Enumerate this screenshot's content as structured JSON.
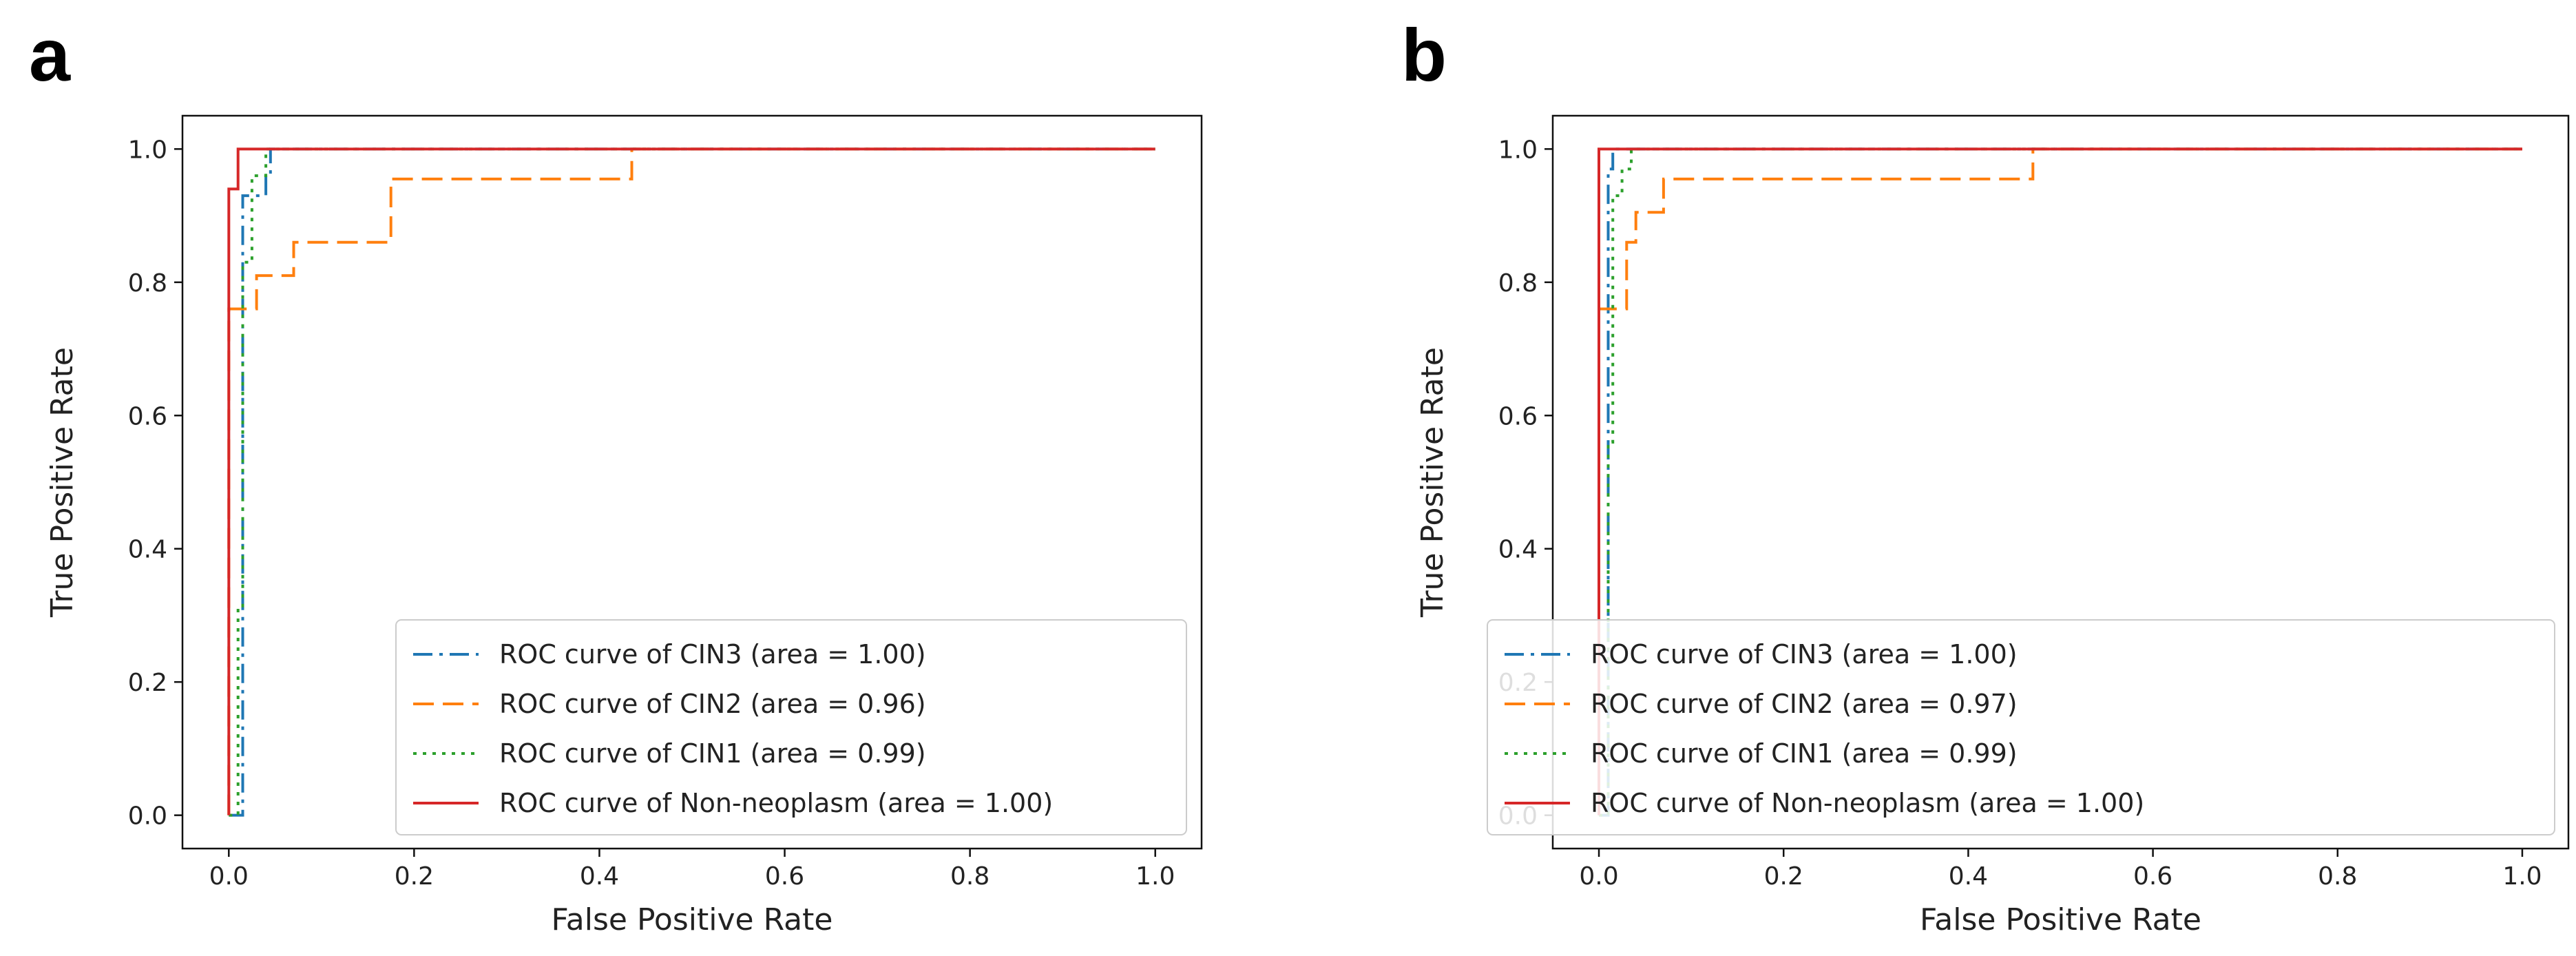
{
  "panels": [
    {
      "letter": "a"
    },
    {
      "letter": "b"
    }
  ],
  "chart_data": [
    {
      "type": "line",
      "panel": "a",
      "title": "",
      "xlabel": "False Positive Rate",
      "ylabel": "True Positive Rate",
      "xlim": [
        -0.05,
        1.05
      ],
      "ylim": [
        -0.05,
        1.05
      ],
      "xticks": [
        0.0,
        0.2,
        0.4,
        0.6,
        0.8,
        1.0
      ],
      "yticks": [
        0.0,
        0.2,
        0.4,
        0.6,
        0.8,
        1.0
      ],
      "tick_labels": [
        "0.0",
        "0.2",
        "0.4",
        "0.6",
        "0.8",
        "1.0"
      ],
      "grid": false,
      "legend_position": "bottom-right",
      "series": [
        {
          "name": "ROC curve of CIN3 (area = 1.00)",
          "color": "#1f77b4",
          "style": "dashdot",
          "x": [
            0.0,
            0.015,
            0.015,
            0.04,
            0.04,
            0.045,
            0.045,
            1.0
          ],
          "y": [
            0.0,
            0.0,
            0.93,
            0.93,
            0.96,
            0.96,
            1.0,
            1.0
          ]
        },
        {
          "name": "ROC curve of CIN2 (area = 0.96)",
          "color": "#ff7f0e",
          "style": "dashed",
          "x": [
            0.0,
            0.0,
            0.03,
            0.03,
            0.05,
            0.05,
            0.07,
            0.07,
            0.175,
            0.175,
            0.435,
            0.435,
            1.0
          ],
          "y": [
            0.0,
            0.76,
            0.76,
            0.81,
            0.81,
            0.81,
            0.81,
            0.86,
            0.86,
            0.955,
            0.955,
            1.0,
            1.0
          ]
        },
        {
          "name": "ROC curve of CIN1 (area = 0.99)",
          "color": "#2ca02c",
          "style": "dotted",
          "x": [
            0.0,
            0.01,
            0.01,
            0.015,
            0.015,
            0.025,
            0.025,
            0.04,
            0.04,
            1.0
          ],
          "y": [
            0.0,
            0.0,
            0.31,
            0.31,
            0.83,
            0.83,
            0.96,
            0.96,
            1.0,
            1.0
          ]
        },
        {
          "name": "ROC curve of Non-neoplasm (area = 1.00)",
          "color": "#d62728",
          "style": "solid",
          "x": [
            0.0,
            0.0,
            0.0,
            0.01,
            0.01,
            1.0
          ],
          "y": [
            0.0,
            0.0,
            0.94,
            0.94,
            1.0,
            1.0
          ]
        }
      ]
    },
    {
      "type": "line",
      "panel": "b",
      "title": "",
      "xlabel": "False Positive Rate",
      "ylabel": "True Positive Rate",
      "xlim": [
        -0.05,
        1.05
      ],
      "ylim": [
        -0.05,
        1.05
      ],
      "xticks": [
        0.0,
        0.2,
        0.4,
        0.6,
        0.8,
        1.0
      ],
      "yticks": [
        0.0,
        0.2,
        0.4,
        0.6,
        0.8,
        1.0
      ],
      "tick_labels": [
        "0.0",
        "0.2",
        "0.4",
        "0.6",
        "0.8",
        "1.0"
      ],
      "grid": false,
      "legend_position": "bottom-right",
      "series": [
        {
          "name": "ROC curve of CIN3 (area = 1.00)",
          "color": "#1f77b4",
          "style": "dashdot",
          "x": [
            0.0,
            0.01,
            0.01,
            0.015,
            0.015,
            1.0
          ],
          "y": [
            0.0,
            0.0,
            0.97,
            0.97,
            1.0,
            1.0
          ]
        },
        {
          "name": "ROC curve of CIN2 (area = 0.97)",
          "color": "#ff7f0e",
          "style": "dashed",
          "x": [
            0.0,
            0.0,
            0.03,
            0.03,
            0.04,
            0.04,
            0.05,
            0.05,
            0.07,
            0.07,
            0.47,
            0.47,
            1.0
          ],
          "y": [
            0.0,
            0.76,
            0.76,
            0.86,
            0.86,
            0.905,
            0.905,
            0.905,
            0.905,
            0.955,
            0.955,
            1.0,
            1.0
          ]
        },
        {
          "name": "ROC curve of CIN1 (area = 0.99)",
          "color": "#2ca02c",
          "style": "dotted",
          "x": [
            0.0,
            0.01,
            0.01,
            0.015,
            0.015,
            0.025,
            0.025,
            0.035,
            0.035,
            1.0
          ],
          "y": [
            0.0,
            0.0,
            0.56,
            0.56,
            0.93,
            0.93,
            0.97,
            0.97,
            1.0,
            1.0
          ]
        },
        {
          "name": "ROC curve of Non-neoplasm (area = 1.00)",
          "color": "#d62728",
          "style": "solid",
          "x": [
            0.0,
            0.0,
            0.0,
            1.0
          ],
          "y": [
            0.0,
            0.0,
            1.0,
            1.0
          ]
        }
      ]
    }
  ]
}
